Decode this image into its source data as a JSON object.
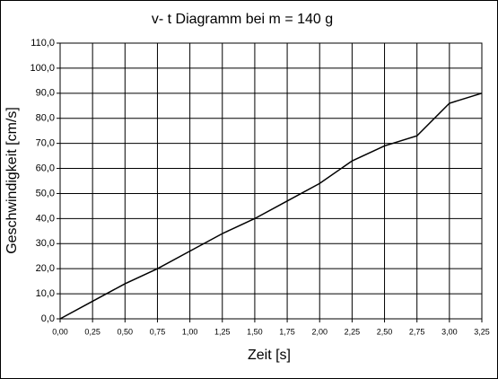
{
  "chart_data": {
    "type": "line",
    "title": "v- t Diagramm bei m = 140 g",
    "x_label": "Zeit  [s]",
    "y_label": "Geschwindigkeit [cm/s]",
    "x": [
      0,
      0.25,
      0.5,
      0.75,
      1.0,
      1.25,
      1.5,
      1.75,
      2.0,
      2.25,
      2.5,
      2.75,
      3.0,
      3.25
    ],
    "values": [
      0,
      7,
      14,
      20,
      27,
      34,
      40,
      47,
      54,
      63,
      69,
      73,
      86,
      90
    ],
    "color": "#000000",
    "xlim": [
      0,
      3.25
    ],
    "xticks": [
      {
        "value": 0,
        "label": "0,00"
      },
      {
        "value": 0.25,
        "label": "0,25"
      },
      {
        "value": 0.5,
        "label": "0,50"
      },
      {
        "value": 0.75,
        "label": "0,75"
      },
      {
        "value": 1,
        "label": "1,00"
      },
      {
        "value": 1.25,
        "label": "1,25"
      },
      {
        "value": 1.5,
        "label": "1,50"
      },
      {
        "value": 1.75,
        "label": "1,75"
      },
      {
        "value": 2,
        "label": "2,00"
      },
      {
        "value": 2.25,
        "label": "2,25"
      },
      {
        "value": 2.5,
        "label": "2,50"
      },
      {
        "value": 2.75,
        "label": "2,75"
      },
      {
        "value": 3,
        "label": "3,00"
      },
      {
        "value": 3.25,
        "label": "3,25"
      }
    ],
    "ylim": [
      0,
      110
    ],
    "yticks": [
      {
        "value": 0,
        "label": "0,0"
      },
      {
        "value": 10,
        "label": "10,0"
      },
      {
        "value": 20,
        "label": "20,0"
      },
      {
        "value": 30,
        "label": "30,0"
      },
      {
        "value": 40,
        "label": "40,0"
      },
      {
        "value": 50,
        "label": "50,0"
      },
      {
        "value": 60,
        "label": "60,0"
      },
      {
        "value": 70,
        "label": "70,0"
      },
      {
        "value": 80,
        "label": "80,0"
      },
      {
        "value": 90,
        "label": "90,0"
      },
      {
        "value": 100,
        "label": "100,0"
      },
      {
        "value": 110,
        "label": "110,0"
      }
    ],
    "grid": true
  }
}
